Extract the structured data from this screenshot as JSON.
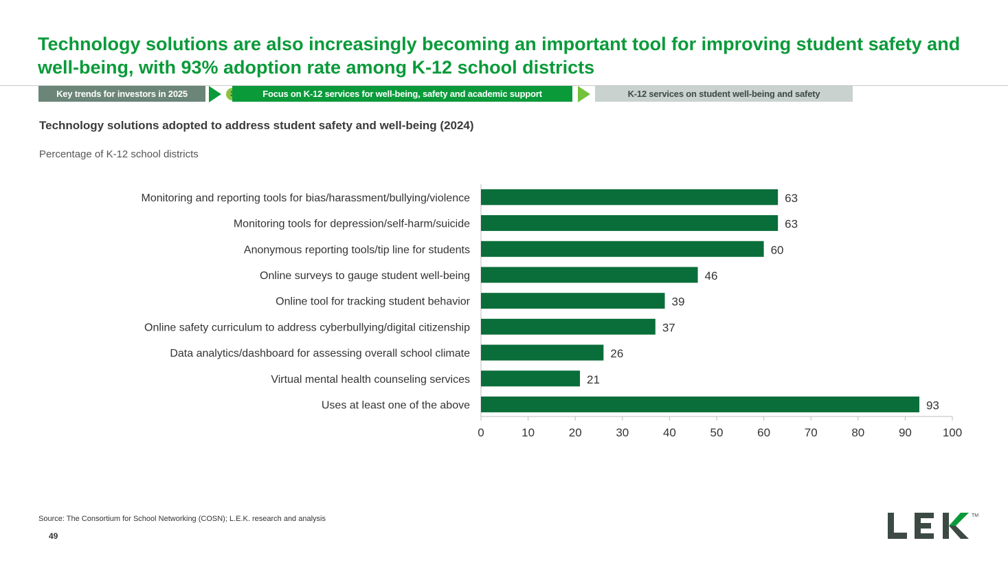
{
  "header": {
    "title": "Technology solutions are also increasingly becoming an important tool for improving student safety and well-being, with 93% adoption rate among K-12 school districts"
  },
  "breadcrumb": {
    "items": [
      "Key trends for investors in 2025",
      "Focus on K-12 services for well-being, safety and academic support",
      "K-12 services on student well-being and safety"
    ],
    "step_number": "3"
  },
  "colors": {
    "brand_green": "#0a9a3a",
    "bar": "#0a6e3a",
    "crumb_grey": "#6b8578",
    "crumb_light": "#c9d2cf"
  },
  "chart_data": {
    "type": "bar",
    "orientation": "horizontal",
    "title": "Technology solutions adopted to address student safety and well-being (2024)",
    "subtitle": "Percentage of K-12 school districts",
    "categories": [
      "Monitoring and reporting tools for bias/harassment/bullying/violence",
      "Monitoring tools for depression/self-harm/suicide",
      "Anonymous reporting tools/tip line for students",
      "Online surveys to gauge student well-being",
      "Online tool for tracking student behavior",
      "Online safety curriculum to address cyberbullying/digital citizenship",
      "Data analytics/dashboard for assessing overall school climate",
      "Virtual mental health counseling services",
      "Uses at least one of the above"
    ],
    "values": [
      63,
      63,
      60,
      46,
      39,
      37,
      26,
      21,
      93
    ],
    "xlim": [
      0,
      100
    ],
    "xticks": [
      0,
      10,
      20,
      30,
      40,
      50,
      60,
      70,
      80,
      90,
      100
    ],
    "grid": false,
    "data_labels": true
  },
  "footer": {
    "source": "Source:  The Consortium for School Networking (COSN); L.E.K. research and analysis",
    "page_number": "49",
    "logo_text": "LEK",
    "logo_tm": "TM"
  }
}
